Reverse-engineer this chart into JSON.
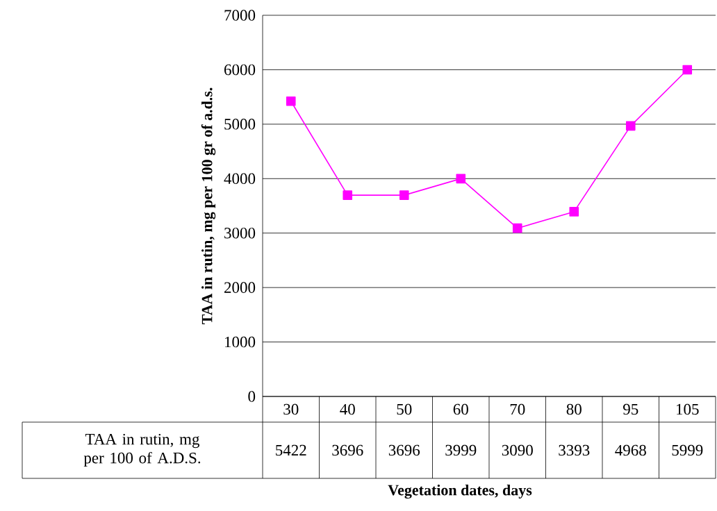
{
  "chart_data": {
    "type": "line",
    "xlabel": "Vegetation dates, days",
    "ylabel": "TAA in rutin, mg per 100 gr of a.d.s.",
    "categories": [
      "30",
      "40",
      "50",
      "60",
      "70",
      "80",
      "95",
      "105"
    ],
    "series": [
      {
        "name": "TAA in rutin, mg per 100 of A.D.S.",
        "color": "#ff00ff",
        "values": [
          5422,
          3696,
          3696,
          3999,
          3090,
          3393,
          4968,
          5999
        ]
      }
    ],
    "ylim": [
      0,
      7000
    ],
    "yticks": [
      0,
      1000,
      2000,
      3000,
      4000,
      5000,
      6000,
      7000
    ],
    "grid": "y",
    "marker": "square",
    "line_style": "solid",
    "data_labels": true
  }
}
